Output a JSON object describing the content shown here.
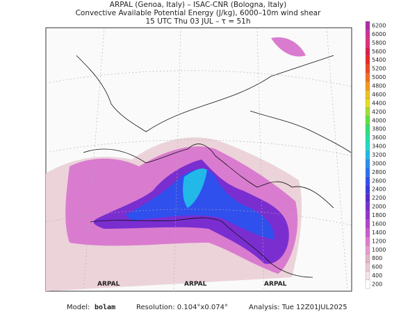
{
  "header": {
    "line1": "ARPAL (Genoa, Italy)  –  ISAC-CNR (Bologna, Italy)",
    "line2": "Convective Available Potential Energy (J/kg), 6000–10m wind shear",
    "line3": "15 UTC Thu 03 JUL  –  τ = 51h"
  },
  "map": {
    "watermark": "ARPAL"
  },
  "colorbar": {
    "levels": [
      200,
      400,
      600,
      800,
      1000,
      1200,
      1400,
      1600,
      1800,
      2000,
      2200,
      2400,
      2600,
      2800,
      3000,
      3200,
      3400,
      3600,
      3800,
      4000,
      4200,
      4400,
      4600,
      4800,
      5000,
      5200,
      5400,
      5600,
      5800,
      6000,
      6200
    ],
    "colors": [
      "#ffffff",
      "#f0e4e6",
      "#eccbd2",
      "#e8b3c6",
      "#e59ad0",
      "#de7ad0",
      "#cc5ccc",
      "#b045c8",
      "#9236c8",
      "#7a2ed0",
      "#5a28d0",
      "#3a3ae0",
      "#3050ee",
      "#2a70f2",
      "#2890f0",
      "#22b8e8",
      "#20d8c8",
      "#22e0a0",
      "#30e070",
      "#60e040",
      "#a0e030",
      "#e0e020",
      "#f0c020",
      "#f09820",
      "#f07020",
      "#f04820",
      "#e82828",
      "#d8204a",
      "#e0307a",
      "#d0309a",
      "#b02aa0"
    ]
  },
  "footer": {
    "model_label": "Model:",
    "model": "bolam",
    "resolution": "Resolution: 0.104°x0.074°",
    "analysis": "Analysis: Tue 12Z01JUL2025"
  }
}
